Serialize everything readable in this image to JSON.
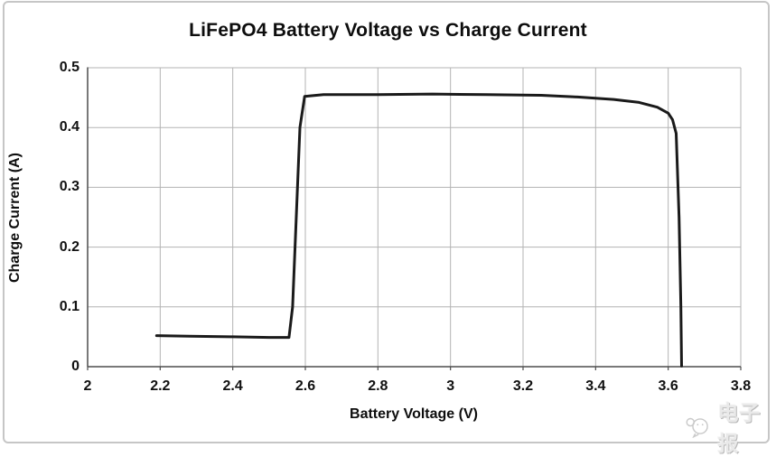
{
  "title": "LiFePO4 Battery Voltage vs Charge Current",
  "watermark": {
    "logo": "speech-bubble-face-logo",
    "text": "电子报"
  },
  "chart_data": {
    "type": "line",
    "title": "LiFePO4 Battery Voltage vs Charge Current",
    "xlabel": "Battery Voltage (V)",
    "ylabel": "Charge Current (A)",
    "xlim": [
      2,
      3.8
    ],
    "ylim": [
      0,
      0.5
    ],
    "x_tick_values": [
      2,
      2.2,
      2.4,
      2.6,
      2.8,
      3,
      3.2,
      3.4,
      3.6,
      3.8
    ],
    "x_tick_labels": [
      "2",
      "2.2",
      "2.4",
      "2.6",
      "2.8",
      "3",
      "3.2",
      "3.4",
      "3.6",
      "3.8"
    ],
    "y_tick_values": [
      0,
      0.1,
      0.2,
      0.3,
      0.4,
      0.5
    ],
    "y_tick_labels": [
      "0",
      "0.1",
      "0.2",
      "0.3",
      "0.4",
      "0.5"
    ],
    "grid": true,
    "legend_position": "none",
    "series": [
      {
        "name": "charge-current",
        "points": [
          [
            2.19,
            0.052
          ],
          [
            2.28,
            0.051
          ],
          [
            2.4,
            0.05
          ],
          [
            2.5,
            0.049
          ],
          [
            2.555,
            0.049
          ],
          [
            2.565,
            0.1
          ],
          [
            2.585,
            0.4
          ],
          [
            2.598,
            0.452
          ],
          [
            2.65,
            0.455
          ],
          [
            2.8,
            0.455
          ],
          [
            2.95,
            0.456
          ],
          [
            3.1,
            0.455
          ],
          [
            3.25,
            0.454
          ],
          [
            3.35,
            0.451
          ],
          [
            3.45,
            0.447
          ],
          [
            3.52,
            0.442
          ],
          [
            3.57,
            0.434
          ],
          [
            3.6,
            0.424
          ],
          [
            3.612,
            0.413
          ],
          [
            3.622,
            0.39
          ],
          [
            3.63,
            0.25
          ],
          [
            3.635,
            0.1
          ],
          [
            3.637,
            0.001
          ]
        ]
      }
    ],
    "colors": {
      "line": "#1a1a1a",
      "gridline": "#b3b3b3",
      "axis": "#4d4d4d",
      "text": "#0d0d0d",
      "frame_border": "#c6c6c6",
      "watermark": "#cfcfcf"
    }
  }
}
